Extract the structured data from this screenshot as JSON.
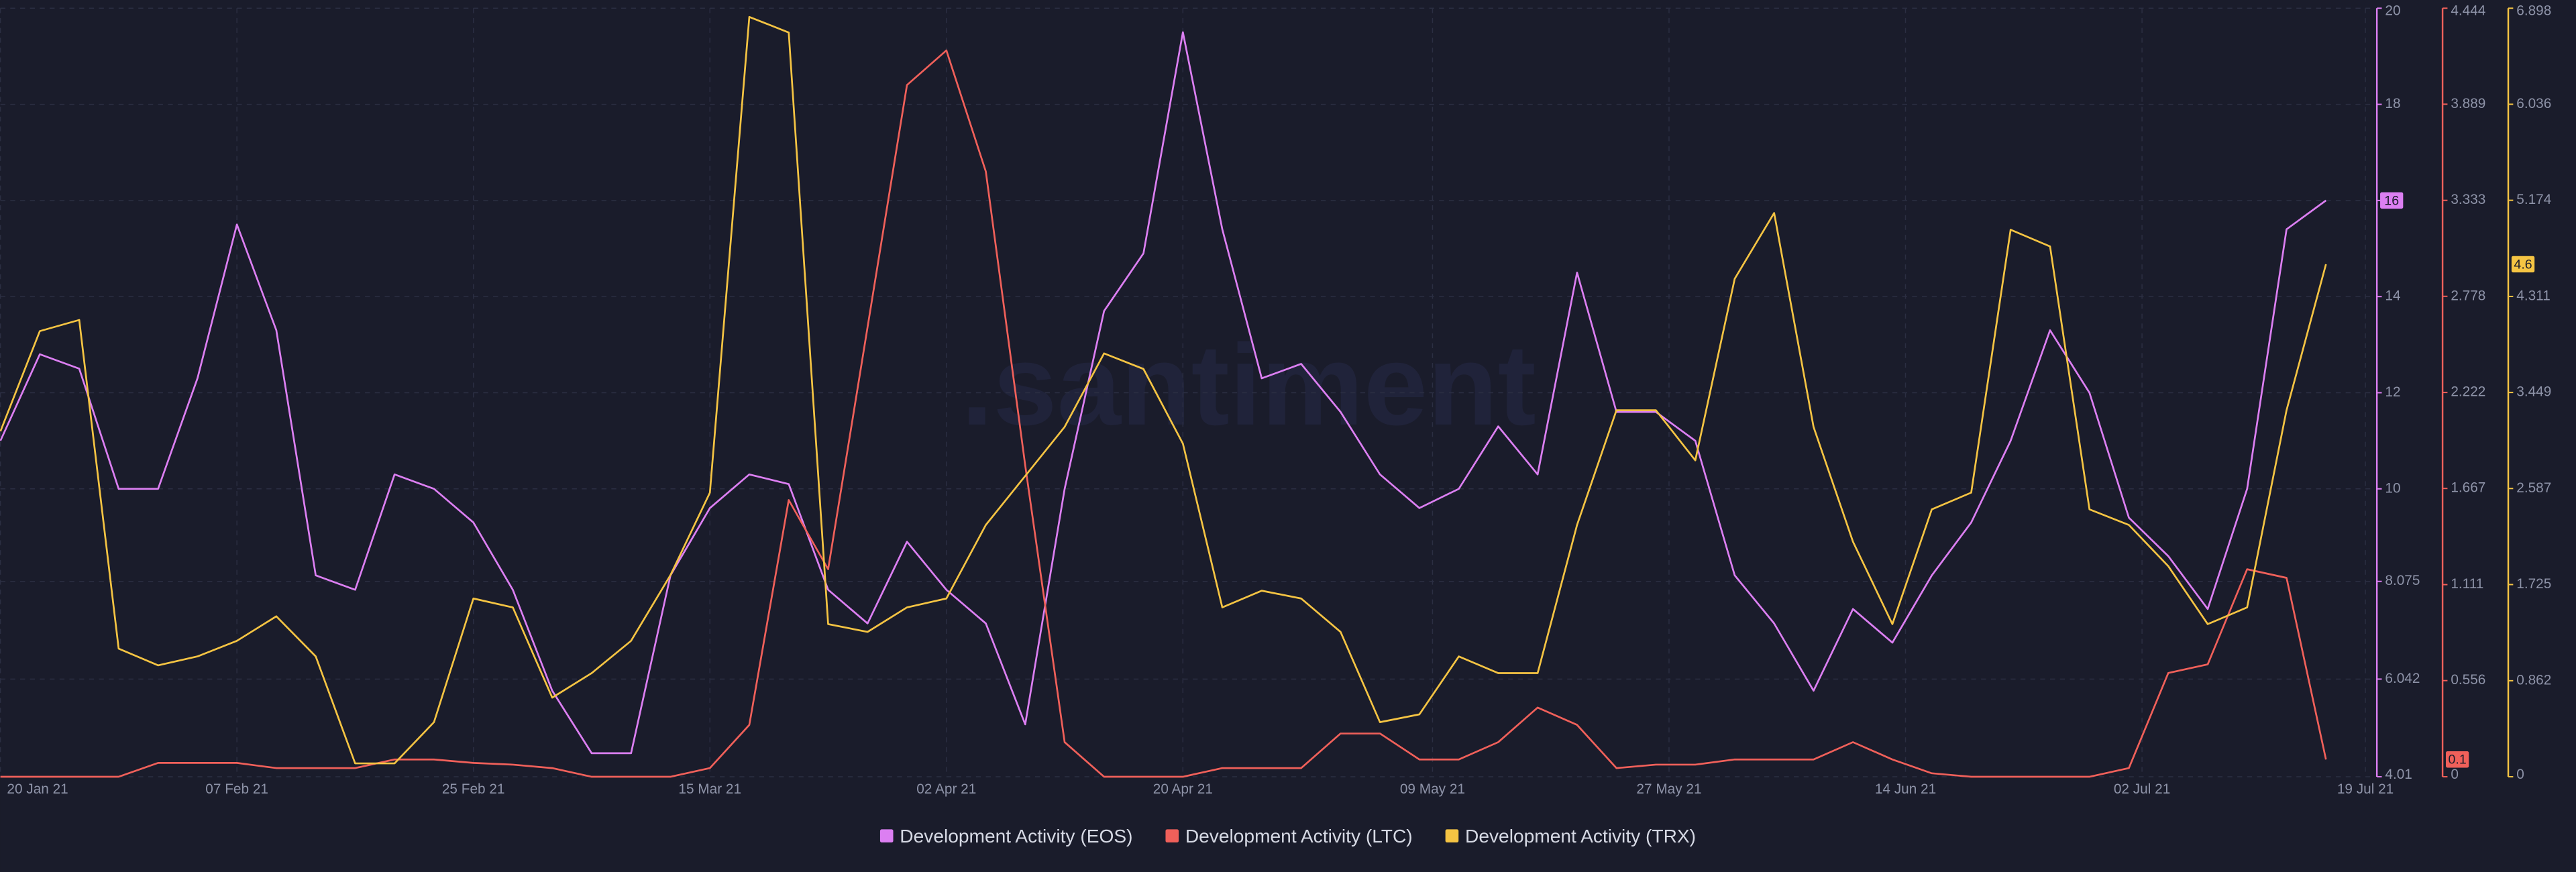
{
  "chart_data": {
    "type": "line",
    "watermark": ".santiment",
    "x": [
      "2021-01-20",
      "2021-01-23",
      "2021-01-26",
      "2021-01-29",
      "2021-02-01",
      "2021-02-04",
      "2021-02-07",
      "2021-02-10",
      "2021-02-13",
      "2021-02-16",
      "2021-02-19",
      "2021-02-22",
      "2021-02-25",
      "2021-02-28",
      "2021-03-03",
      "2021-03-06",
      "2021-03-09",
      "2021-03-12",
      "2021-03-15",
      "2021-03-18",
      "2021-03-21",
      "2021-03-24",
      "2021-03-27",
      "2021-03-30",
      "2021-04-02",
      "2021-04-05",
      "2021-04-08",
      "2021-04-11",
      "2021-04-14",
      "2021-04-17",
      "2021-04-20",
      "2021-04-23",
      "2021-04-26",
      "2021-04-29",
      "2021-05-02",
      "2021-05-05",
      "2021-05-08",
      "2021-05-11",
      "2021-05-14",
      "2021-05-17",
      "2021-05-20",
      "2021-05-23",
      "2021-05-26",
      "2021-05-29",
      "2021-06-01",
      "2021-06-04",
      "2021-06-07",
      "2021-06-10",
      "2021-06-13",
      "2021-06-16",
      "2021-06-19",
      "2021-06-22",
      "2021-06-25",
      "2021-06-28",
      "2021-07-01",
      "2021-07-04",
      "2021-07-07",
      "2021-07-10",
      "2021-07-13",
      "2021-07-16"
    ],
    "xlim": [
      "2021-01-20",
      "2021-07-19"
    ],
    "xticks": [
      {
        "value": "2021-01-20",
        "label": "20 Jan 21"
      },
      {
        "value": "2021-02-07",
        "label": "07 Feb 21"
      },
      {
        "value": "2021-02-25",
        "label": "25 Feb 21"
      },
      {
        "value": "2021-03-15",
        "label": "15 Mar 21"
      },
      {
        "value": "2021-04-02",
        "label": "02 Apr 21"
      },
      {
        "value": "2021-04-20",
        "label": "20 Apr 21"
      },
      {
        "value": "2021-05-09",
        "label": "09 May 21"
      },
      {
        "value": "2021-05-27",
        "label": "27 May 21"
      },
      {
        "value": "2021-06-14",
        "label": "14 Jun 21"
      },
      {
        "value": "2021-07-02",
        "label": "02 Jul 21"
      },
      {
        "value": "2021-07-19",
        "label": "19 Jul 21"
      }
    ],
    "ylim": [
      4.01,
      20
    ],
    "yticks": [
      4.01,
      6.042,
      8.075,
      10,
      12,
      14,
      16,
      18,
      20
    ],
    "y2lim": [
      0,
      4.444
    ],
    "y2ticks": [
      0,
      0.556,
      1.111,
      1.667,
      2.222,
      2.778,
      3.333,
      3.889,
      4.444
    ],
    "y3lim": [
      0,
      6.898
    ],
    "y3ticks": [
      0,
      0.862,
      1.725,
      2.587,
      3.449,
      4.311,
      5.174,
      6.036,
      6.898
    ],
    "grid": true,
    "legend": "bottom",
    "series": [
      {
        "name": "Development Activity (EOS)",
        "color": "#dc7ff2",
        "axis": "y",
        "values": [
          11,
          12.8,
          12.5,
          10,
          10,
          12.3,
          15.5,
          13.3,
          8.2,
          7.9,
          10.3,
          10,
          9.3,
          7.9,
          5.8,
          4.5,
          4.5,
          8.2,
          9.6,
          10.3,
          10.1,
          7.9,
          7.2,
          8.9,
          7.9,
          7.2,
          5.1,
          10,
          13.7,
          14.9,
          19.5,
          15.4,
          12.3,
          12.6,
          11.6,
          10.3,
          9.6,
          10,
          11.3,
          10.3,
          14.5,
          11.6,
          11.6,
          11,
          8.2,
          7.2,
          5.8,
          7.5,
          6.8,
          8.2,
          9.3,
          11,
          13.3,
          12,
          9.4,
          8.6,
          7.5,
          10,
          15.4,
          16
        ]
      },
      {
        "name": "Development Activity (LTC)",
        "color": "#f0605a",
        "axis": "y2",
        "values": [
          0,
          0,
          0,
          0,
          0.08,
          0.08,
          0.08,
          0.05,
          0.05,
          0.05,
          0.1,
          0.1,
          0.08,
          0.07,
          0.05,
          0,
          0,
          0,
          0.05,
          0.3,
          1.6,
          1.2,
          2.6,
          4,
          4.2,
          3.5,
          1.8,
          0.2,
          0,
          0,
          0,
          0.05,
          0.05,
          0.05,
          0.25,
          0.25,
          0.1,
          0.1,
          0.2,
          0.4,
          0.3,
          0.05,
          0.07,
          0.07,
          0.1,
          0.1,
          0.1,
          0.2,
          0.1,
          0.02,
          0,
          0,
          0,
          0,
          0.05,
          0.6,
          0.65,
          1.2,
          1.15,
          0.1
        ]
      },
      {
        "name": "Development Activity (TRX)",
        "color": "#f5c443",
        "axis": "y3",
        "values": [
          3.1,
          4,
          4.1,
          1.15,
          1,
          1.08,
          1.22,
          1.44,
          1.08,
          0.12,
          0.12,
          0.49,
          1.6,
          1.52,
          0.71,
          0.93,
          1.22,
          1.81,
          2.55,
          6.82,
          6.68,
          1.37,
          1.3,
          1.52,
          1.6,
          2.26,
          2.7,
          3.14,
          3.8,
          3.66,
          2.99,
          1.52,
          1.67,
          1.6,
          1.3,
          0.49,
          0.56,
          1.08,
          0.93,
          0.93,
          2.26,
          3.29,
          3.29,
          2.84,
          4.47,
          5.06,
          3.14,
          2.11,
          1.37,
          2.4,
          2.55,
          4.91,
          4.76,
          2.4,
          2.26,
          1.89,
          1.37,
          1.52,
          3.29,
          4.6
        ]
      }
    ]
  }
}
